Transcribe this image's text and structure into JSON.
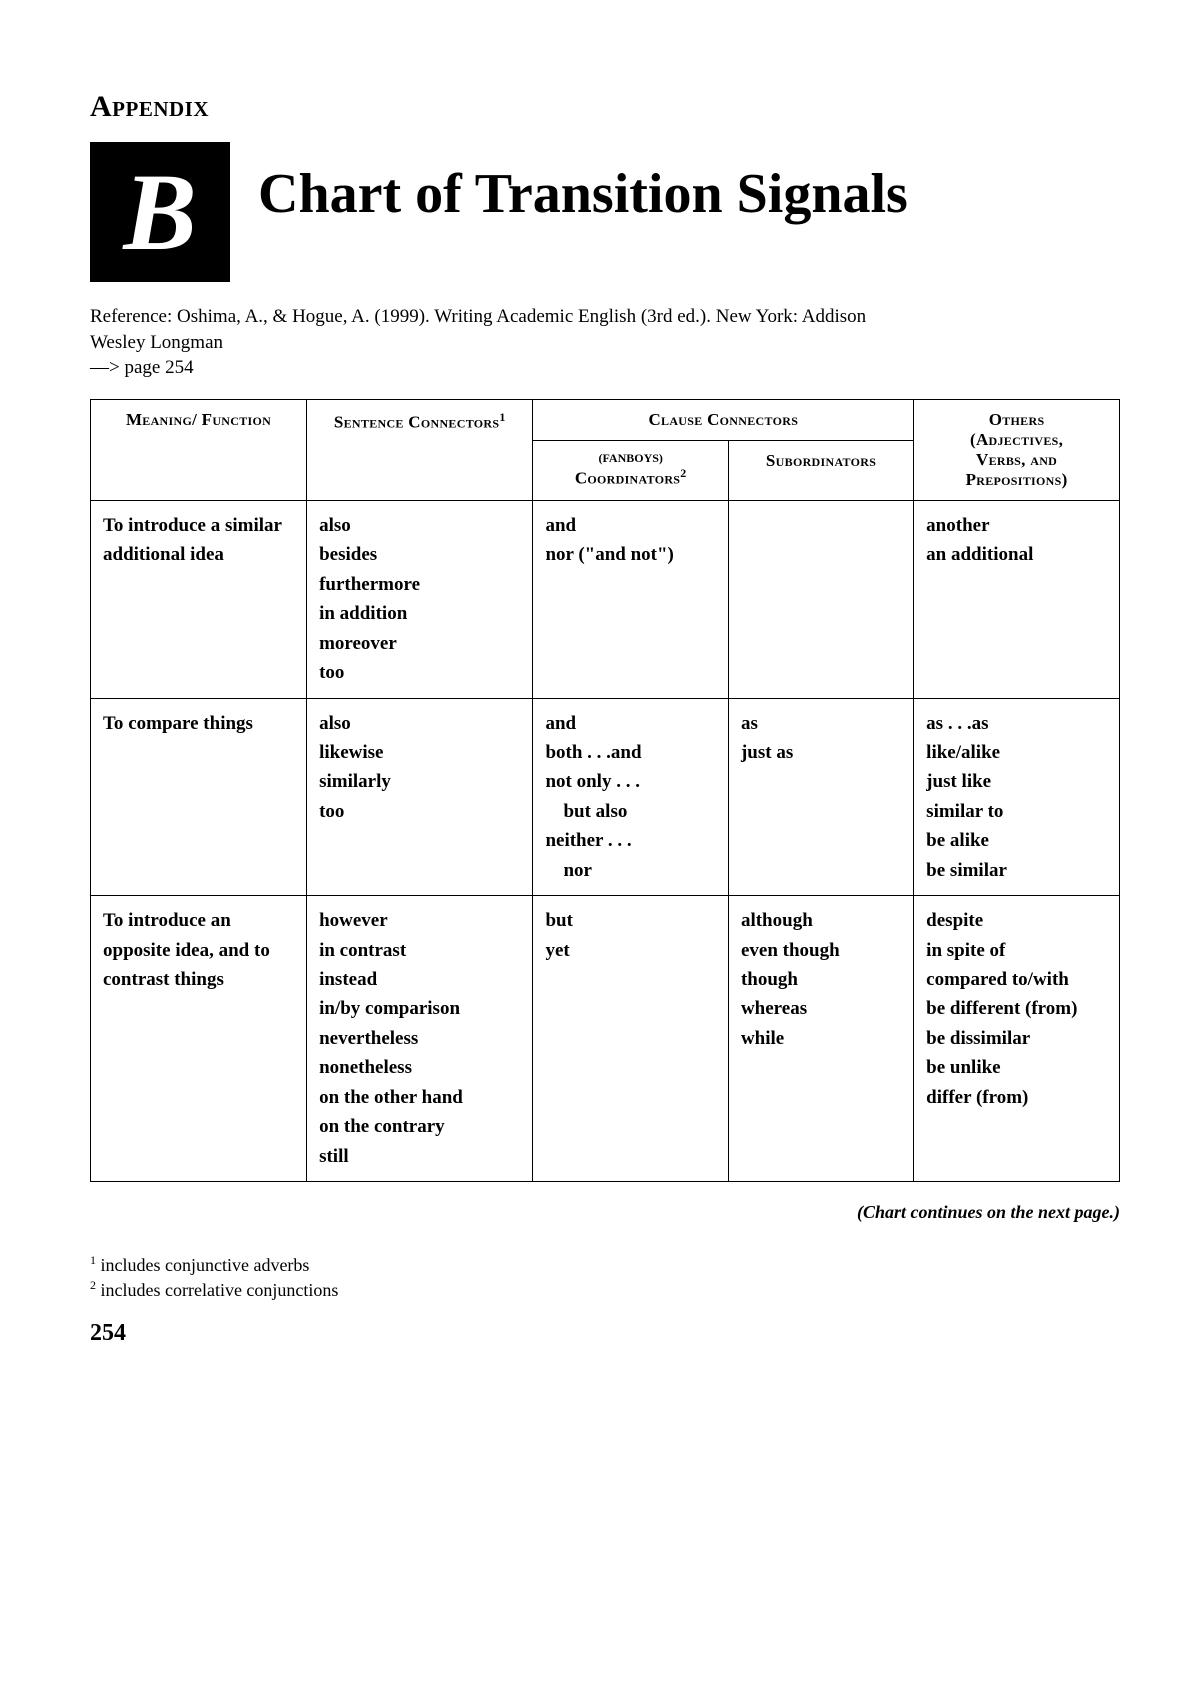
{
  "appendix_label": "Appendix",
  "badge_letter": "B",
  "main_title": "Chart of Transition Signals",
  "reference_line1": "Reference: Oshima, A., & Hogue, A. (1999). Writing Academic English (3rd ed.). New York: Addison",
  "reference_line2": "Wesley Longman",
  "reference_line3": "—> page 254",
  "headers": {
    "col1": "Meaning/ Function",
    "col2_main": "Sentence Connectors",
    "col2_sup": "1",
    "clause_header": "Clause Connectors",
    "col3_top": "(FANBOYS)",
    "col3_main": "Coordinators",
    "col3_sup": "2",
    "col4": "Subordinators",
    "col5_line1": "Others",
    "col5_line2": "(Adjectives,",
    "col5_line3": "Verbs, and",
    "col5_line4": "Prepositions)"
  },
  "rows": [
    {
      "meaning_lines": [
        {
          "segments": [
            {
              "t": "To introduce a similar ",
              "b": false
            }
          ]
        },
        {
          "segments": [
            {
              "t": "additional",
              "b": true
            },
            {
              "t": " idea",
              "b": false
            }
          ]
        }
      ],
      "sentence": [
        "also",
        "besides",
        "furthermore",
        "in addition",
        "moreover",
        "too"
      ],
      "coord": [
        "and",
        "nor (\"and not\")"
      ],
      "subord": [],
      "others": [
        "another",
        "an additional"
      ]
    },
    {
      "meaning_lines": [
        {
          "segments": [
            {
              "t": "To ",
              "b": false
            },
            {
              "t": "compare",
              "b": true
            },
            {
              "t": " things",
              "b": false
            }
          ]
        }
      ],
      "sentence": [
        "also",
        "likewise",
        "similarly",
        "too"
      ],
      "coord": [
        "and",
        "both . . .and",
        "not only . . .",
        "   but also",
        "neither . . .",
        "   nor"
      ],
      "subord": [
        "as",
        "just as"
      ],
      "others": [
        "as . . .as",
        "like/alike",
        "just like",
        "similar to",
        "be alike",
        "be similar"
      ]
    },
    {
      "meaning_lines": [
        {
          "segments": [
            {
              "t": "To introduce an ",
              "b": false
            }
          ]
        },
        {
          "segments": [
            {
              "t": "opposite",
              "b": true
            },
            {
              "t": " idea, and to ",
              "b": false
            }
          ]
        },
        {
          "segments": [
            {
              "t": "contrast",
              "b": true
            },
            {
              "t": " things",
              "b": false
            }
          ]
        }
      ],
      "sentence": [
        "however",
        "in contrast",
        "instead",
        "in/by comparison",
        "nevertheless",
        "nonetheless",
        "on the other hand",
        "on the contrary",
        "still"
      ],
      "coord": [
        "but",
        "yet"
      ],
      "subord": [
        "although",
        "even though",
        "though",
        "whereas",
        "while"
      ],
      "others": [
        "despite",
        "in spite of",
        "compared to/with",
        "be different (from)",
        "be dissimilar",
        "be unlike",
        "differ (from)"
      ]
    }
  ],
  "continues_note": "(Chart continues on the next page.)",
  "footnote1": " includes conjunctive adverbs",
  "footnote1_sup": "1",
  "footnote2": " includes correlative conjunctions",
  "footnote2_sup": "2",
  "page_number": "254"
}
